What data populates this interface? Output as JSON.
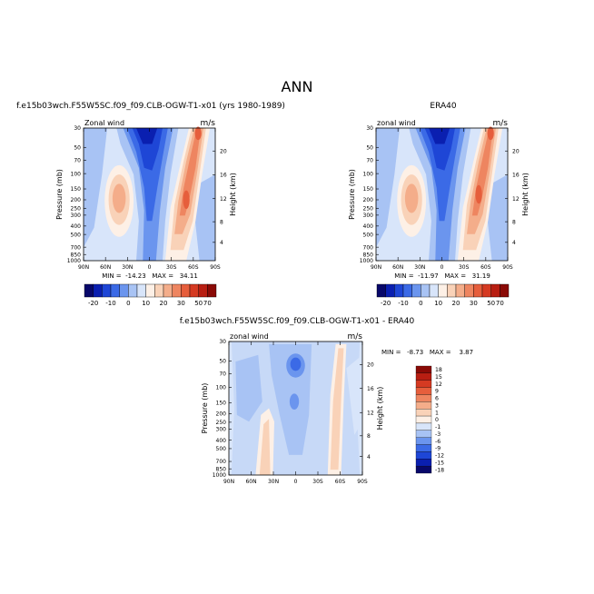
{
  "figure": {
    "title": "ANN"
  },
  "chart_data": [
    {
      "type": "heatmap",
      "title": "f.e15b03wch.F55W5SC.f09_f09.CLB-OGW-T1-x01 (yrs 1980-1989)",
      "field_label": "Zonal wind",
      "units": "m/s",
      "ylabel": "Pressure (mb)",
      "y2label": "Height (km)",
      "stats": "MIN =  -14.23   MAX =   34.11",
      "x_ticks": [
        "90N",
        "60N",
        "30N",
        "0",
        "30S",
        "60S",
        "90S"
      ],
      "y_ticks": [
        "30",
        "50",
        "70",
        "100",
        "150",
        "200",
        "250",
        "300",
        "400",
        "500",
        "700",
        "850",
        "1000"
      ],
      "y2_ticks": [
        "20",
        "16",
        "12",
        "8",
        "4"
      ],
      "ylim": [
        1000,
        30
      ],
      "colorbar": {
        "labels": [
          "-20",
          "-10",
          "0",
          "10",
          "20",
          "30",
          "50",
          "70"
        ],
        "colors": [
          "#08086a",
          "#0a1fb0",
          "#1e46d6",
          "#3b6ae6",
          "#6b95ee",
          "#a8c3f4",
          "#d8e5fa",
          "#fdf0e6",
          "#f9d2b8",
          "#f4ad8a",
          "#ee8560",
          "#e65e3c",
          "#d53a22",
          "#b81e12",
          "#8a0a06"
        ]
      }
    },
    {
      "type": "heatmap",
      "title": "ERA40",
      "field_label": "zonal wind",
      "units": "m/s",
      "ylabel": "Pressure (mb)",
      "y2label": "Height (km)",
      "stats": "MIN =  -11.97   MAX =   31.19",
      "x_ticks": [
        "90N",
        "60N",
        "30N",
        "0",
        "30S",
        "60S",
        "90S"
      ],
      "y_ticks": [
        "30",
        "50",
        "70",
        "100",
        "150",
        "200",
        "250",
        "300",
        "400",
        "500",
        "700",
        "850",
        "1000"
      ],
      "y2_ticks": [
        "20",
        "16",
        "12",
        "8",
        "4"
      ],
      "ylim": [
        1000,
        30
      ],
      "colorbar": {
        "labels": [
          "-20",
          "-10",
          "0",
          "10",
          "20",
          "30",
          "50",
          "70"
        ],
        "colors": [
          "#08086a",
          "#0a1fb0",
          "#1e46d6",
          "#3b6ae6",
          "#6b95ee",
          "#a8c3f4",
          "#d8e5fa",
          "#fdf0e6",
          "#f9d2b8",
          "#f4ad8a",
          "#ee8560",
          "#e65e3c",
          "#d53a22",
          "#b81e12",
          "#8a0a06"
        ]
      }
    },
    {
      "type": "heatmap",
      "title": "f.e15b03wch.F55W5SC.f09_f09.CLB-OGW-T1-x01 - ERA40",
      "field_label": "zonal wind",
      "units": "m/s",
      "ylabel": "Pressure (mb)",
      "y2label": "Height (km)",
      "stats": "MIN =   -8.73   MAX =    3.87",
      "x_ticks": [
        "90N",
        "60N",
        "30N",
        "0",
        "30S",
        "60S",
        "90S"
      ],
      "y_ticks": [
        "30",
        "50",
        "70",
        "100",
        "150",
        "200",
        "250",
        "300",
        "400",
        "500",
        "700",
        "850",
        "1000"
      ],
      "y2_ticks": [
        "20",
        "16",
        "12",
        "8",
        "4"
      ],
      "ylim": [
        1000,
        30
      ],
      "colorbar": {
        "labels": [
          "18",
          "15",
          "12",
          "9",
          "6",
          "3",
          "1",
          "0",
          "-1",
          "-3",
          "-6",
          "-9",
          "-12",
          "-15",
          "-18"
        ],
        "colors": [
          "#8a0a06",
          "#b81e12",
          "#d53a22",
          "#e65e3c",
          "#ee8560",
          "#f4ad8a",
          "#f9d2b8",
          "#fdf0e6",
          "#d8e5fa",
          "#a8c3f4",
          "#6b95ee",
          "#3b6ae6",
          "#1e46d6",
          "#0a1fb0",
          "#08086a"
        ]
      }
    }
  ]
}
